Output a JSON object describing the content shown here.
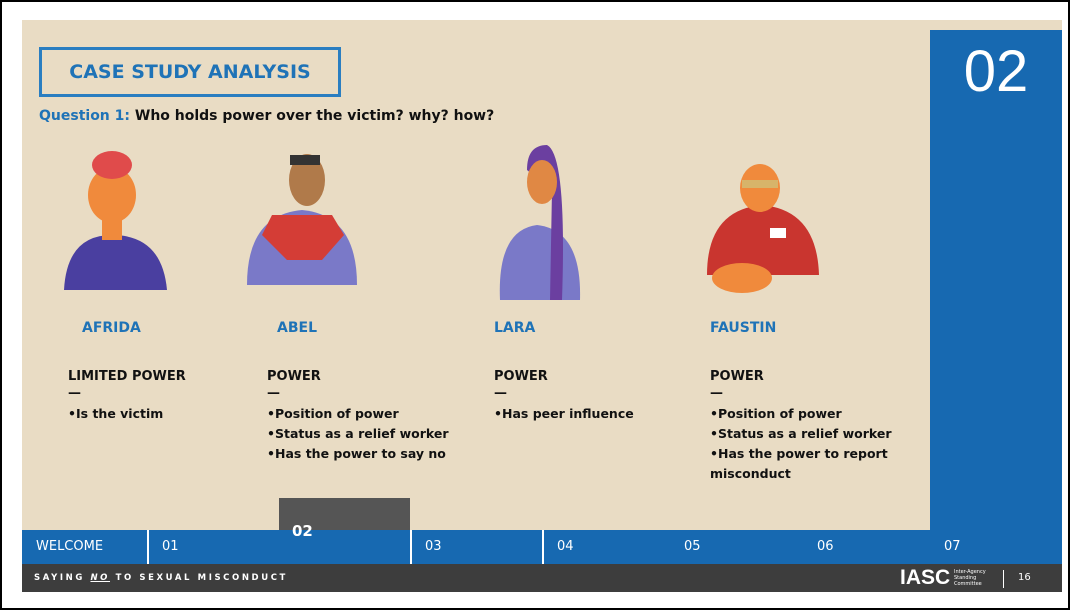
{
  "slide": {
    "title": "CASE STUDY ANALYSIS",
    "question_label": "Question 1:",
    "question_text": "Who holds power over the victim? why? how?",
    "section_number": "02",
    "dash": "—",
    "people": [
      {
        "name": "AFRIDA",
        "power": "LIMITED POWER",
        "bullets": [
          "Is the victim"
        ]
      },
      {
        "name": "ABEL",
        "power": "POWER",
        "bullets": [
          "Position of power",
          "Status as a relief worker",
          "Has the power to say no"
        ]
      },
      {
        "name": "LARA",
        "power": "POWER",
        "bullets": [
          "Has peer influence"
        ]
      },
      {
        "name": "FAUSTIN",
        "power": "POWER",
        "bullets": [
          "Position of power",
          "Status as a relief worker",
          "Has the power to report misconduct"
        ]
      }
    ],
    "nav": [
      "WELCOME",
      "01",
      "02",
      "03",
      "04",
      "05",
      "06",
      "07"
    ],
    "footer": {
      "part1": "SAYING",
      "part2": "NO",
      "part3": "TO SEXUAL MISCONDUCT",
      "logo": "IASC",
      "logo_small": [
        "Inter-Agency",
        "Standing",
        "Committee"
      ],
      "page": "16"
    }
  }
}
